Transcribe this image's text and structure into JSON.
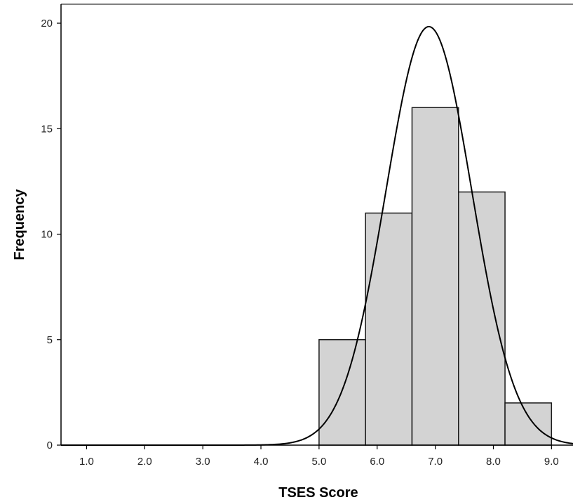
{
  "chart_data": {
    "type": "bar",
    "subtype": "histogram-with-normal-curve",
    "xlabel": "TSES Score",
    "ylabel": "Frequency",
    "xlim": [
      0.56,
      9.37
    ],
    "ylim": [
      0,
      20.9
    ],
    "x_ticks": [
      1.0,
      2.0,
      3.0,
      4.0,
      5.0,
      6.0,
      7.0,
      8.0,
      9.0
    ],
    "x_tick_labels": [
      "1.0",
      "2.0",
      "3.0",
      "4.0",
      "5.0",
      "6.0",
      "7.0",
      "8.0",
      "9.0"
    ],
    "y_ticks": [
      0,
      5,
      10,
      15,
      20
    ],
    "y_tick_labels": [
      "0",
      "5",
      "10",
      "15",
      "20"
    ],
    "bins": [
      {
        "start": 5.0,
        "end": 5.8,
        "count": 5
      },
      {
        "start": 5.8,
        "end": 6.6,
        "count": 11
      },
      {
        "start": 6.6,
        "end": 7.4,
        "count": 16
      },
      {
        "start": 7.4,
        "end": 8.2,
        "count": 12
      },
      {
        "start": 8.2,
        "end": 9.0,
        "count": 2
      }
    ],
    "normal_curve": {
      "mean": 6.89,
      "sd": 0.74,
      "n": 46,
      "bin_width": 0.8
    },
    "grid": false,
    "legend": "none",
    "colors": {
      "bar_fill": "#d3d3d3",
      "bar_stroke": "#1a1a1a",
      "curve": "#000000",
      "axis": "#000000"
    }
  }
}
